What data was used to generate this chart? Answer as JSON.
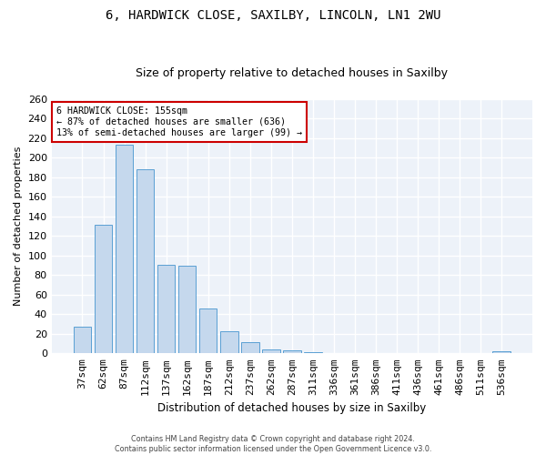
{
  "title": "6, HARDWICK CLOSE, SAXILBY, LINCOLN, LN1 2WU",
  "subtitle": "Size of property relative to detached houses in Saxilby",
  "xlabel": "Distribution of detached houses by size in Saxilby",
  "ylabel": "Number of detached properties",
  "categories": [
    "37sqm",
    "62sqm",
    "87sqm",
    "112sqm",
    "137sqm",
    "162sqm",
    "187sqm",
    "212sqm",
    "237sqm",
    "262sqm",
    "287sqm",
    "311sqm",
    "336sqm",
    "361sqm",
    "386sqm",
    "411sqm",
    "436sqm",
    "461sqm",
    "486sqm",
    "511sqm",
    "536sqm"
  ],
  "values": [
    27,
    132,
    213,
    188,
    91,
    90,
    46,
    23,
    11,
    4,
    3,
    1,
    0,
    0,
    0,
    0,
    0,
    0,
    0,
    0,
    2
  ],
  "bar_color": "#c5d8ed",
  "bar_edge_color": "#5a9fd4",
  "annotation_text": "6 HARDWICK CLOSE: 155sqm\n← 87% of detached houses are smaller (636)\n13% of semi-detached houses are larger (99) →",
  "annotation_box_color": "#ffffff",
  "annotation_box_edge_color": "#cc0000",
  "ylim": [
    0,
    260
  ],
  "bg_color": "#edf2f9",
  "grid_color": "#ffffff",
  "footer_line1": "Contains HM Land Registry data © Crown copyright and database right 2024.",
  "footer_line2": "Contains public sector information licensed under the Open Government Licence v3.0."
}
